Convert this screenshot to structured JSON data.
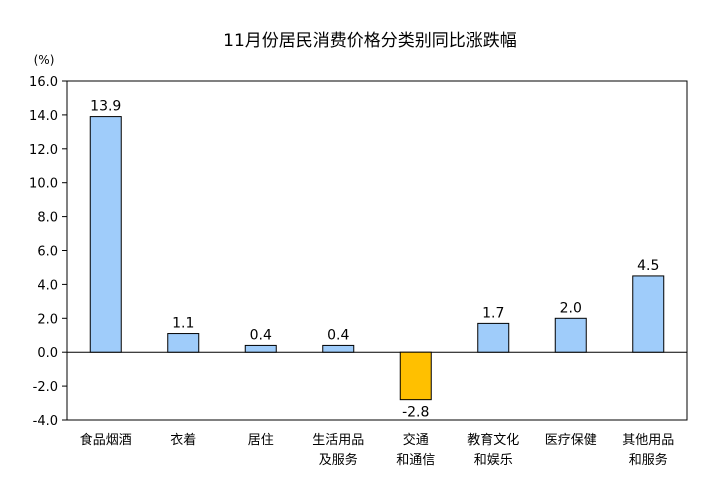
{
  "chart_data": {
    "type": "bar",
    "title": "11月份居民消费价格分类别同比涨跌幅",
    "unit_label": "(%)",
    "ylim": [
      -4.0,
      16.0
    ],
    "yticks": [
      "16.0",
      "14.0",
      "12.0",
      "10.0",
      "8.0",
      "6.0",
      "4.0",
      "2.0",
      "0.0",
      "-2.0",
      "-4.0"
    ],
    "grid": false,
    "legend": "none",
    "categories": [
      [
        "食品烟酒"
      ],
      [
        "衣着"
      ],
      [
        "居住"
      ],
      [
        "生活用品",
        "及服务"
      ],
      [
        "交通",
        "和通信"
      ],
      [
        "教育文化",
        "和娱乐"
      ],
      [
        "医疗保健"
      ],
      [
        "其他用品",
        "和服务"
      ]
    ],
    "values": [
      13.9,
      1.1,
      0.4,
      0.4,
      -2.8,
      1.7,
      2.0,
      4.5
    ],
    "value_labels": [
      "13.9",
      "1.1",
      "0.4",
      "0.4",
      "-2.8",
      "1.7",
      "2.0",
      "4.5"
    ],
    "colors": {
      "positive_fill": "#9FCCFA",
      "negative_fill": "#FFC000",
      "bar_stroke": "#000000"
    }
  }
}
